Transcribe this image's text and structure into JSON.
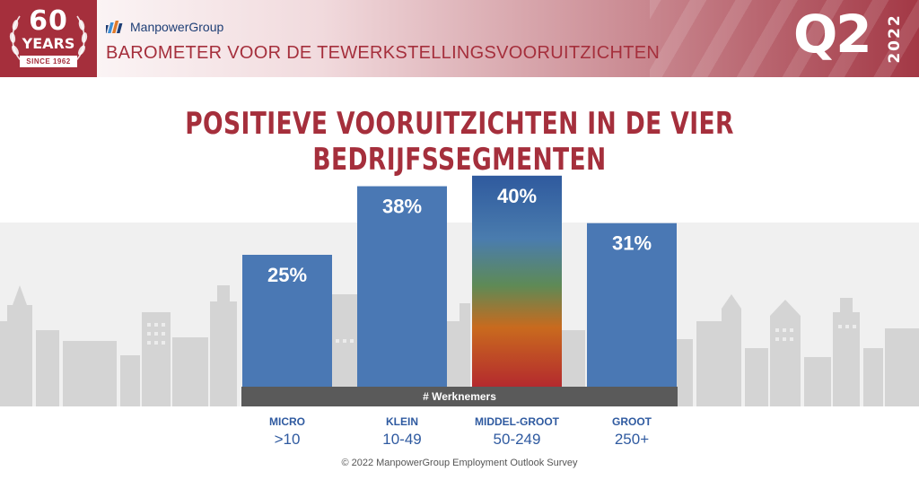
{
  "header": {
    "badge_number": "60",
    "badge_years": "YEARS",
    "badge_since": "SINCE 1962",
    "brand": "ManpowerGroup",
    "title": "BAROMETER VOOR DE TEWERKSTELLINGSVOORUITZICHTEN",
    "quarter": "Q2",
    "year": "2022"
  },
  "footer": "© 2022 ManpowerGroup Employment Outlook Survey",
  "colors": {
    "brand_red": "#a52f3c",
    "bar_blue": "#4a78b4",
    "label_blue": "#2f5aa0",
    "axis_gray": "#5a5a5a"
  },
  "chart_data": {
    "type": "bar",
    "title": "POSITIEVE VOORUITZICHTEN IN DE VIER BEDRIJFSSEGMENTEN",
    "xlabel": "# Werknemers",
    "categories": [
      "MICRO",
      "KLEIN",
      "MIDDEL-GROOT",
      "GROOT"
    ],
    "category_ranges": [
      ">10",
      "10-49",
      "50-249",
      "250+"
    ],
    "values": [
      25,
      38,
      40,
      31
    ],
    "value_labels": [
      "25%",
      "38%",
      "40%",
      "31%"
    ],
    "unit": "%",
    "highlighted_category": "MIDDEL-GROOT",
    "ylim": [
      0,
      40
    ]
  }
}
